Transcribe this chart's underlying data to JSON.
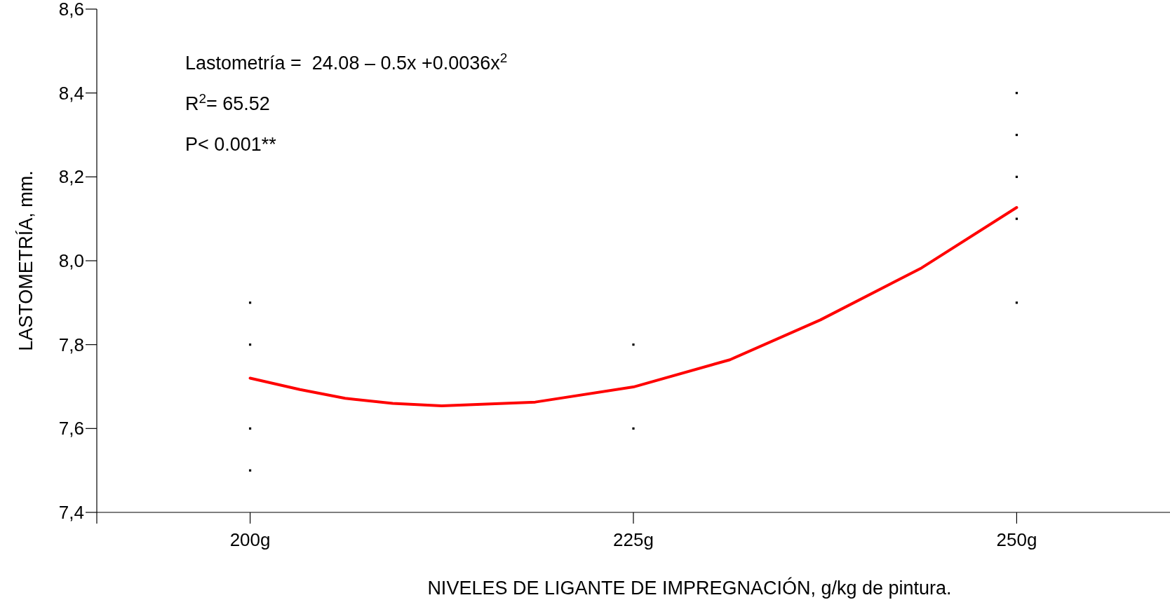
{
  "chart_data": {
    "type": "scatter",
    "xlabel": "NIVELES DE LIGANTE DE IMPREGNACIÓN, g/kg de pintura.",
    "ylabel": "LASTOMETRÍA, mm.",
    "xlim": [
      190,
      260
    ],
    "xticks": [
      {
        "value": 200,
        "label": "200g"
      },
      {
        "value": 225,
        "label": "225g"
      },
      {
        "value": 250,
        "label": "250g"
      }
    ],
    "ylim": [
      7.4,
      8.6
    ],
    "yticks": [
      {
        "value": 7.4,
        "label": "7,4"
      },
      {
        "value": 7.6,
        "label": "7,6"
      },
      {
        "value": 7.8,
        "label": "7,8"
      },
      {
        "value": 8.0,
        "label": "8,0"
      },
      {
        "value": 8.2,
        "label": "8,2"
      },
      {
        "value": 8.4,
        "label": "8,4"
      },
      {
        "value": 8.6,
        "label": "8,6"
      }
    ],
    "grid": false,
    "series": [
      {
        "marker": "square",
        "color": "#000000",
        "x": [
          200,
          200,
          200,
          200,
          225,
          225,
          250,
          250,
          250,
          250,
          250
        ],
        "values": [
          7.9,
          7.8,
          7.6,
          7.5,
          7.8,
          7.6,
          8.4,
          8.3,
          8.2,
          8.1,
          7.9
        ]
      },
      {
        "type": "line",
        "color": "#ff0000",
        "line_style": "solid",
        "x": [
          200,
          203.25,
          206.2,
          209.3,
          212.5,
          218.6,
          225,
          231.3,
          237.2,
          243.8,
          250
        ],
        "values": [
          7.72,
          7.693,
          7.672,
          7.66,
          7.654,
          7.663,
          7.699,
          7.764,
          7.859,
          7.983,
          8.127
        ]
      }
    ],
    "annotations": [
      "Lastometría =  24.08 – 0.5x +0.0036x$^{2}$",
      "R$^{2}$= 65.52",
      "P< 0.001**"
    ]
  }
}
